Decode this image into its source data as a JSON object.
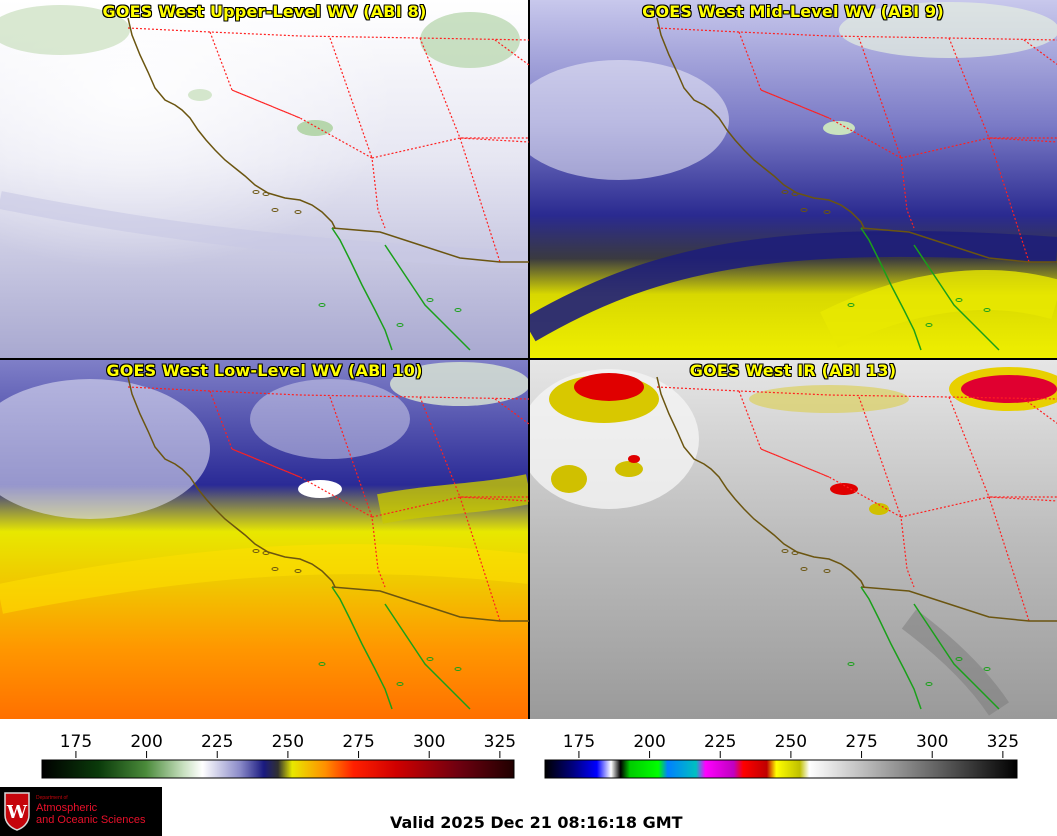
{
  "panels": [
    {
      "title": "GOES West Upper-Level WV (ABI 8)",
      "colormap": "water-vapor"
    },
    {
      "title": "GOES West Mid-Level WV (ABI 9)",
      "colormap": "water-vapor"
    },
    {
      "title": "GOES West Low-Level WV (ABI 10)",
      "colormap": "water-vapor"
    },
    {
      "title": "GOES West IR (ABI 13)",
      "colormap": "infrared"
    }
  ],
  "colorbars": [
    {
      "name": "water-vapor-scale",
      "ticks": [
        "175",
        "200",
        "225",
        "250",
        "275",
        "300",
        "325"
      ],
      "min": 163,
      "max": 330
    },
    {
      "name": "infrared-scale",
      "ticks": [
        "175",
        "200",
        "225",
        "250",
        "275",
        "300",
        "325"
      ],
      "min": 163,
      "max": 330
    }
  ],
  "logo": {
    "dept": "Department of",
    "line1": "Atmospheric",
    "line2": "and Oceanic Sciences"
  },
  "valid_time": "Valid 2025 Dec 21 08:16:18 GMT",
  "colors": {
    "state_borders": "#ff2020",
    "coastline_us": "#6b5510",
    "coastline_mexico": "#1aa01a",
    "title_text": "#ffff00"
  }
}
